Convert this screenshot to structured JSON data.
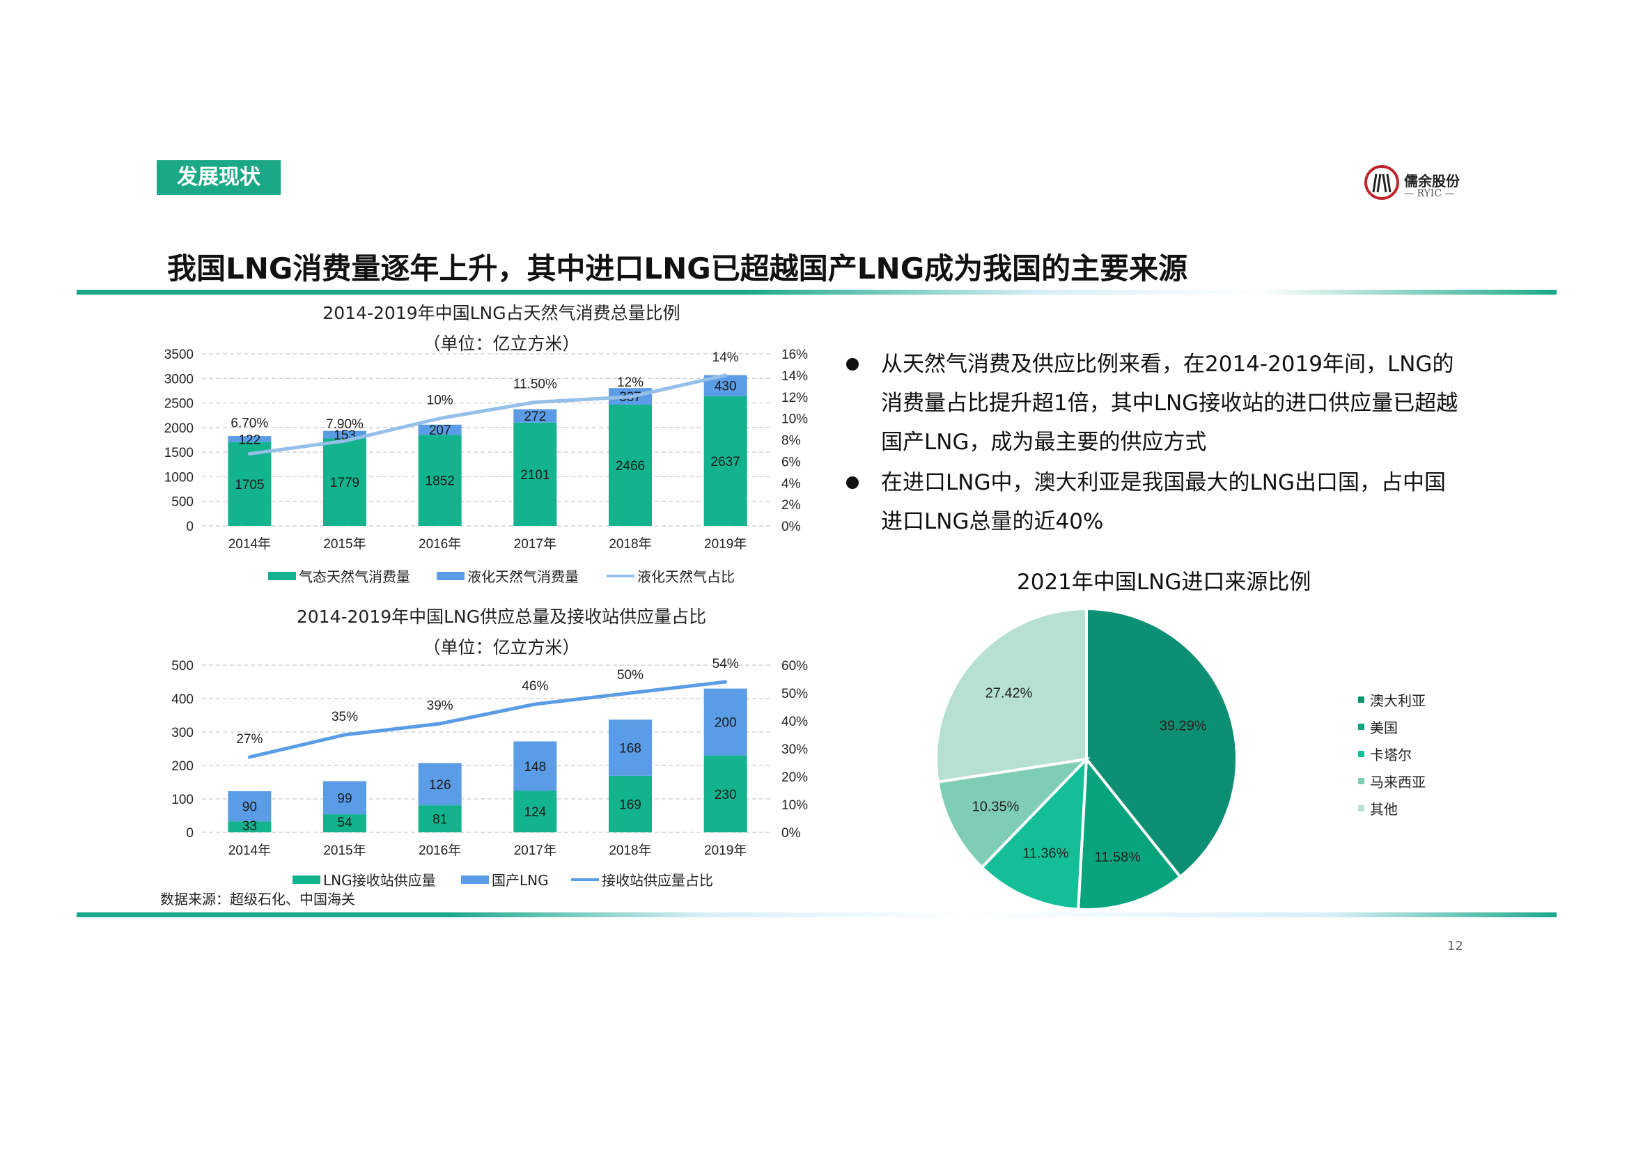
{
  "section_tag": "发展现状",
  "logo": {
    "name": "儒余股份",
    "sub": "— RYIC —"
  },
  "headline": "我国LNG消费量逐年上升，其中进口LNG已超越国产LNG成为我国的主要来源",
  "colors": {
    "green": "#12b38d",
    "blue": "#5b9ce6",
    "line": "#94bfe9",
    "accent": "#1ba887"
  },
  "bullets": [
    "从天然气消费及供应比例来看，在2014-2019年间，LNG的消费量占比提升超1倍，其中LNG接收站的进口供应量已超越国产LNG，成为最主要的供应方式",
    "在进口LNG中，澳大利亚是我国最大的LNG出口国，占中国进口LNG总量的近40%"
  ],
  "source": "数据来源：超级石化、中国海关",
  "page_number": "12",
  "chart_data": [
    {
      "type": "bar",
      "stacked": true,
      "title": "2014-2019年中国LNG占天然气消费总量比例",
      "subtitle": "（单位：亿立方米）",
      "categories": [
        "2014年",
        "2015年",
        "2016年",
        "2017年",
        "2018年",
        "2019年"
      ],
      "series": [
        {
          "name": "气态天然气消费量",
          "values": [
            1705,
            1779,
            1852,
            2101,
            2466,
            2637
          ],
          "color": "#12b38d"
        },
        {
          "name": "液化天然气消费量",
          "values": [
            122,
            153,
            207,
            272,
            337,
            430
          ],
          "color": "#5b9ce6"
        },
        {
          "name": "液化天然气占比",
          "type": "line",
          "axis": "right",
          "values": [
            6.7,
            7.9,
            10,
            11.5,
            12,
            14
          ],
          "labels": [
            "6.70%",
            "7.90%",
            "10%",
            "11.50%",
            "12%",
            "14%"
          ],
          "color": "#94bfe9"
        }
      ],
      "y_ticks": [
        "0",
        "500",
        "1000",
        "1500",
        "2000",
        "2500",
        "3000",
        "3500"
      ],
      "y2_ticks": [
        "0%",
        "2%",
        "4%",
        "6%",
        "8%",
        "10%",
        "12%",
        "14%",
        "16%"
      ],
      "ylim": [
        0,
        3500
      ],
      "y2lim": [
        0,
        16
      ],
      "grid": true,
      "legend": "bottom"
    },
    {
      "type": "bar",
      "stacked": true,
      "title": "2014-2019年中国LNG供应总量及接收站供应量占比",
      "subtitle": "（单位：亿立方米）",
      "categories": [
        "2014年",
        "2015年",
        "2016年",
        "2017年",
        "2018年",
        "2019年"
      ],
      "series": [
        {
          "name": "LNG接收站供应量",
          "values": [
            33,
            54,
            81,
            124,
            169,
            230
          ],
          "color": "#12b38d"
        },
        {
          "name": "国产LNG",
          "values": [
            90,
            99,
            126,
            148,
            168,
            200
          ],
          "color": "#5b9ce6"
        },
        {
          "name": "接收站供应量占比",
          "type": "line",
          "axis": "right",
          "values": [
            27,
            35,
            39,
            46,
            50,
            54
          ],
          "labels": [
            "27%",
            "35%",
            "39%",
            "46%",
            "50%",
            "54%"
          ],
          "color": "#5b9ce6"
        }
      ],
      "y_ticks": [
        "0",
        "100",
        "200",
        "300",
        "400",
        "500"
      ],
      "y2_ticks": [
        "0%",
        "10%",
        "20%",
        "30%",
        "40%",
        "50%",
        "60%"
      ],
      "ylim": [
        0,
        500
      ],
      "y2lim": [
        0,
        60
      ],
      "grid": true,
      "legend": "bottom"
    },
    {
      "type": "pie",
      "title": "2021年中国LNG进口来源比例",
      "labels": [
        "澳大利亚",
        "美国",
        "卡塔尔",
        "马来西亚",
        "其他"
      ],
      "values": [
        39.29,
        11.58,
        11.36,
        10.35,
        27.42
      ],
      "value_labels": [
        "39.29%",
        "11.58%",
        "11.36%",
        "10.35%",
        "27.42%"
      ],
      "colors": [
        "#0c8f72",
        "#08a47e",
        "#14bf97",
        "#80cdb6",
        "#b5e0d2"
      ],
      "legend": "right"
    }
  ]
}
